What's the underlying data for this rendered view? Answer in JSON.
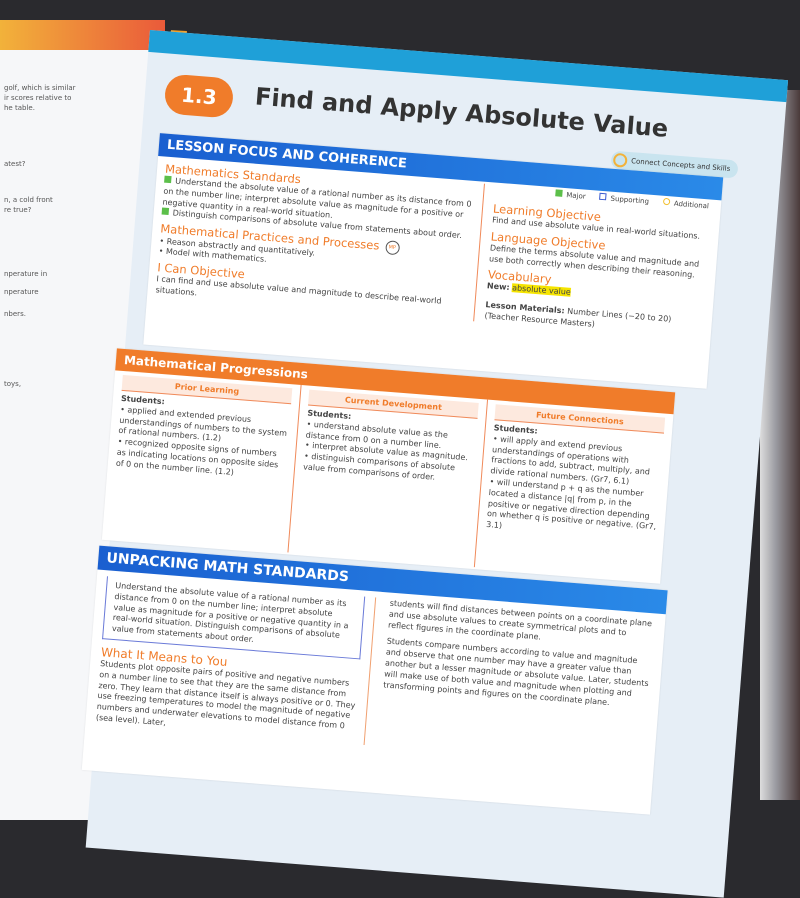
{
  "left_page": {
    "lines": [
      "golf, which is similar",
      "ir scores relative to",
      "he table.",
      "atest?",
      "n, a cold front",
      "re true?",
      "nperature in",
      "nperature",
      "nbers.",
      "toys,"
    ]
  },
  "header": {
    "lesson_number": "1.3",
    "title": "Find and Apply Absolute Value",
    "connect_label": "Connect Concepts and Skills"
  },
  "lesson_focus": {
    "heading": "LESSON FOCUS AND COHERENCE",
    "legend": [
      "Major",
      "Supporting",
      "Additional"
    ],
    "standards_title": "Mathematics Standards",
    "standards": [
      "Understand the absolute value of a rational number as its distance from 0 on the number line; interpret absolute value as magnitude for a positive or negative quantity in a real-world situation.",
      "Distinguish comparisons of absolute value from statements about order."
    ],
    "practices_title": "Mathematical Practices and Processes",
    "mp_badge": "MP",
    "practices": [
      "Reason abstractly and quantitatively.",
      "Model with mathematics."
    ],
    "ican_title": "I Can Objective",
    "ican_text": "I can find and use absolute value and magnitude to describe real-world situations.",
    "learning_title": "Learning Objective",
    "learning_text": "Find and use absolute value in real-world situations.",
    "language_title": "Language Objective",
    "language_text": "Define the terms absolute value and magnitude and use both correctly when describing their reasoning.",
    "vocab_title": "Vocabulary",
    "vocab_new_label": "New:",
    "vocab_new": "absolute value",
    "materials_label": "Lesson Materials:",
    "materials_text": "Number Lines (−20 to 20) (Teacher Resource Masters)"
  },
  "progressions": {
    "heading": "Mathematical Progressions",
    "columns": [
      {
        "title": "Prior Learning",
        "students": "Students:",
        "items": [
          "applied and extended previous understandings of numbers to the system of rational numbers. (1.2)",
          "recognized opposite signs of numbers as indicating locations on opposite sides of 0 on the number line. (1.2)"
        ]
      },
      {
        "title": "Current Development",
        "students": "Students:",
        "items": [
          "understand absolute value as the distance from 0 on a number line.",
          "interpret absolute value as magnitude.",
          "distinguish comparisons of absolute value from comparisons of order."
        ]
      },
      {
        "title": "Future Connections",
        "students": "Students:",
        "items": [
          "will apply and extend previous understandings of operations with fractions to add, subtract, multiply, and divide rational numbers. (Gr7, 6.1)",
          "will understand p + q as the number located a distance |q| from p, in the positive or negative direction depending on whether q is positive or negative. (Gr7, 3.1)"
        ]
      }
    ]
  },
  "unpacking": {
    "heading": "UNPACKING MATH STANDARDS",
    "standard_text": "Understand the absolute value of a rational number as its distance from 0 on the number line; interpret absolute value as magnitude for a positive or negative quantity in a real-world situation. Distinguish comparisons of absolute value from statements about order.",
    "means_title": "What It Means to You",
    "means_text": "Students plot opposite pairs of positive and negative numbers on a number line to see that they are the same distance from zero. They learn that distance itself is always positive or 0. They use freezing temperatures to model the magnitude of negative numbers and underwater elevations to model distance from 0 (sea level). Later,",
    "right_p1": "students will find distances between points on a coordinate plane and use absolute values to create symmetrical plots and to reflect figures in the coordinate plane.",
    "right_p2": "Students compare numbers according to value and magnitude and observe that one number may have a greater value than another but a lesser magnitude or absolute value. Later, students will make use of both value and magnitude when plotting and transforming points and figures on the coordinate plane."
  }
}
